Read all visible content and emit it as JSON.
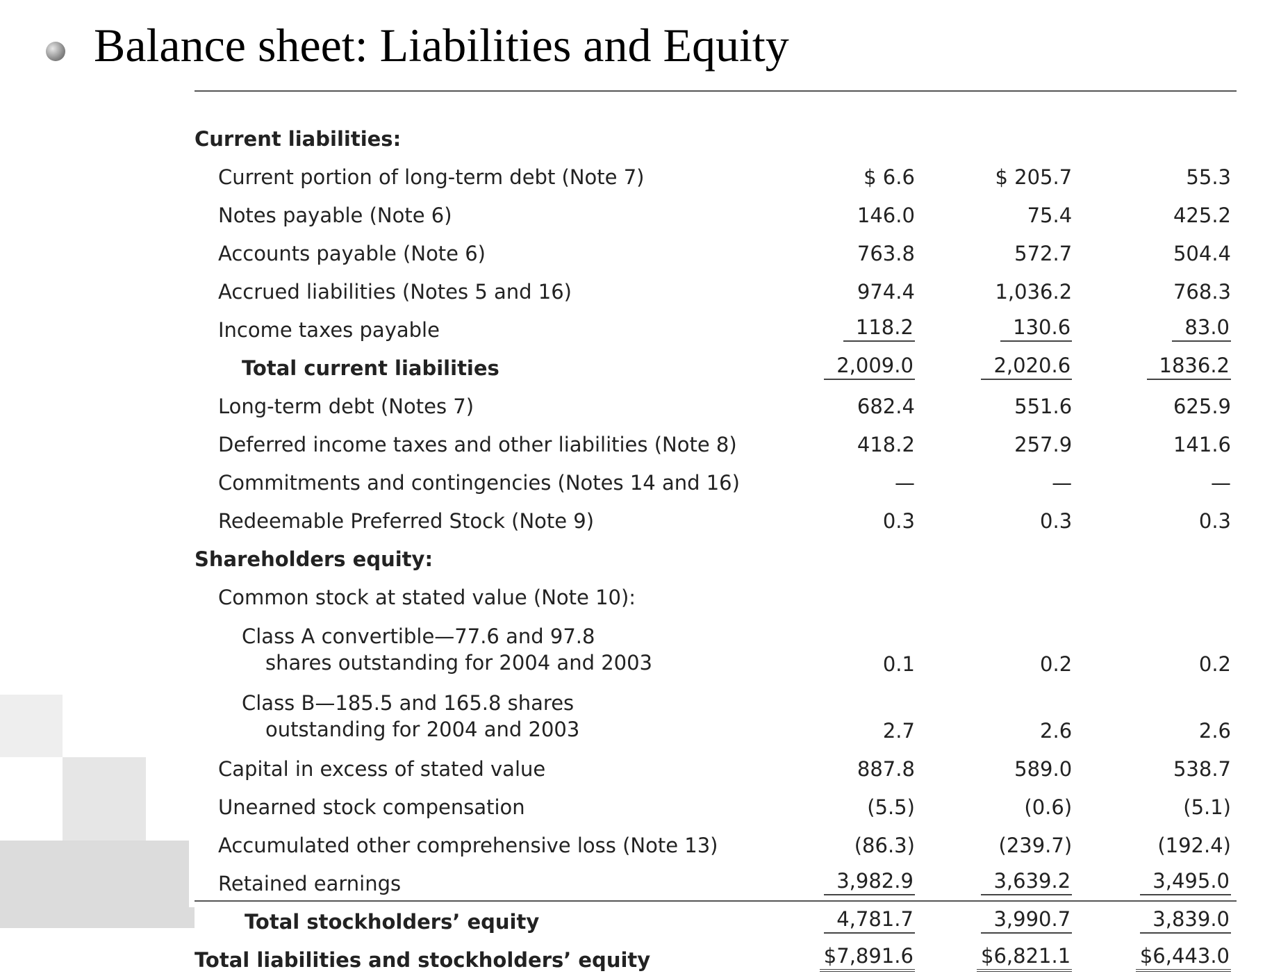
{
  "title": "Balance sheet: Liabilities and Equity",
  "table": {
    "rows": [
      [
        "Current liabilities:"
      ],
      [
        "Current portion of long-term debt (Note 7)",
        "$ 6.6",
        "$ 205.7",
        "55.3"
      ],
      [
        "Notes payable (Note 6)",
        "146.0",
        "75.4",
        "425.2"
      ],
      [
        "Accounts payable (Note 6)",
        "763.8",
        "572.7",
        "504.4"
      ],
      [
        "Accrued liabilities (Notes 5 and 16)",
        "974.4",
        "1,036.2",
        "768.3"
      ],
      [
        "Income taxes payable",
        "118.2",
        "130.6",
        "83.0"
      ],
      [
        "Total current liabilities",
        "2,009.0",
        "2,020.6",
        "1836.2"
      ],
      [
        "Long-term debt (Notes 7)",
        "682.4",
        "551.6",
        "625.9"
      ],
      [
        "Deferred income taxes and other liabilities (Note 8)",
        "418.2",
        "257.9",
        "141.6"
      ],
      [
        "Commitments and contingencies (Notes 14 and 16)",
        "—",
        "—",
        "—"
      ],
      [
        "Redeemable Preferred Stock (Note 9)",
        "0.3",
        "0.3",
        "0.3"
      ],
      [
        "Shareholders equity:"
      ],
      [
        "Common stock at stated value (Note 10):"
      ],
      [
        "Class A convertible—77.6 and 97.8 shares outstanding for 2004 and 2003",
        "0.1",
        "0.2",
        "0.2"
      ],
      [
        "Class B—185.5 and 165.8 shares outstanding for 2004 and 2003",
        "2.7",
        "2.6",
        "2.6"
      ],
      [
        "Capital in excess of stated value",
        "887.8",
        "589.0",
        "538.7"
      ],
      [
        "Unearned stock compensation",
        "(5.5)",
        "(0.6)",
        "(5.1)"
      ],
      [
        "Accumulated other comprehensive loss (Note 13)",
        "(86.3)",
        "(239.7)",
        "(192.4)"
      ],
      [
        "Retained earnings",
        "3,982.9",
        "3,639.2",
        "3,495.0"
      ],
      [
        "Total stockholders’ equity",
        "4,781.7",
        "3,990.7",
        "3,839.0"
      ],
      [
        "Total liabilities and stockholders’ equity",
        "$7,891.6",
        "$6,821.1",
        "$6,443.0"
      ]
    ]
  }
}
